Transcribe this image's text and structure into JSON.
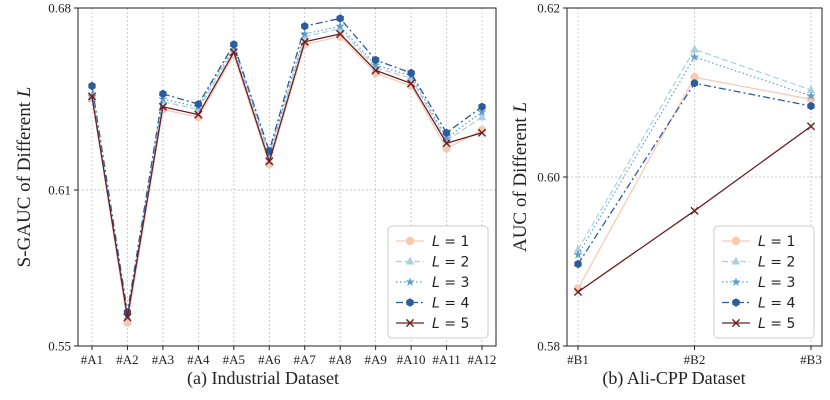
{
  "chart_data": [
    {
      "type": "line",
      "caption": "(a) Industrial Dataset",
      "ylabel_prefix": "S-GAUC of Different ",
      "ylabel_var": "L",
      "categories": [
        "#A1",
        "#A2",
        "#A3",
        "#A4",
        "#A5",
        "#A6",
        "#A7",
        "#A8",
        "#A9",
        "#A10",
        "#A11",
        "#A12"
      ],
      "ylim": [
        0.55,
        0.68
      ],
      "yticks": [
        0.55,
        0.61,
        0.68
      ],
      "ytick_labels": [
        "0.55",
        "0.61",
        "0.68"
      ],
      "grid": true,
      "legend_position": "bottom-right",
      "series": [
        {
          "name": "L = 1",
          "var": "L",
          "label_rest": " = 1",
          "values": [
            0.646,
            0.559,
            0.641,
            0.638,
            0.662,
            0.62,
            0.666,
            0.669,
            0.655,
            0.65,
            0.626,
            0.633
          ]
        },
        {
          "name": "L = 2",
          "var": "L",
          "label_rest": " = 2",
          "values": [
            0.645,
            0.561,
            0.644,
            0.641,
            0.664,
            0.623,
            0.669,
            0.672,
            0.657,
            0.653,
            0.629,
            0.638
          ]
        },
        {
          "name": "L = 3",
          "var": "L",
          "label_rest": " = 3",
          "values": [
            0.646,
            0.562,
            0.645,
            0.642,
            0.665,
            0.624,
            0.67,
            0.673,
            0.658,
            0.654,
            0.63,
            0.64
          ]
        },
        {
          "name": "L = 4",
          "var": "L",
          "label_rest": " = 4",
          "values": [
            0.65,
            0.563,
            0.647,
            0.643,
            0.666,
            0.625,
            0.673,
            0.676,
            0.66,
            0.655,
            0.632,
            0.642
          ]
        },
        {
          "name": "L = 5",
          "var": "L",
          "label_rest": " = 5",
          "values": [
            0.646,
            0.561,
            0.642,
            0.639,
            0.663,
            0.621,
            0.667,
            0.67,
            0.656,
            0.651,
            0.628,
            0.632
          ]
        }
      ]
    },
    {
      "type": "line",
      "caption": "(b) Ali-CPP Dataset",
      "ylabel_prefix": "AUC of Different ",
      "ylabel_var": "L",
      "categories": [
        "#B1",
        "#B2",
        "#B3"
      ],
      "ylim": [
        0.58,
        0.62
      ],
      "yticks": [
        0.58,
        0.6,
        0.62
      ],
      "ytick_labels": [
        "0.58",
        "0.60",
        "0.62"
      ],
      "grid": true,
      "legend_position": "bottom-right",
      "series": [
        {
          "name": "L = 1",
          "var": "L",
          "label_rest": " = 1",
          "values": [
            0.5868,
            0.6118,
            0.6092
          ]
        },
        {
          "name": "L = 2",
          "var": "L",
          "label_rest": " = 2",
          "values": [
            0.5914,
            0.6151,
            0.6103
          ]
        },
        {
          "name": "L = 3",
          "var": "L",
          "label_rest": " = 3",
          "values": [
            0.5908,
            0.6142,
            0.6096
          ]
        },
        {
          "name": "L = 4",
          "var": "L",
          "label_rest": " = 4",
          "values": [
            0.5897,
            0.6111,
            0.6084
          ]
        },
        {
          "name": "L = 5",
          "var": "L",
          "label_rest": " = 5",
          "values": [
            0.5864,
            0.596,
            0.606
          ]
        }
      ]
    }
  ],
  "colors": {
    "L1": "#f6c9b3",
    "L2": "#a9d0e2",
    "L3": "#5e9fcb",
    "L4": "#2b5c9e",
    "L5": "#6b1e23",
    "grid": "#b8b8b8",
    "frame": "#222222"
  }
}
